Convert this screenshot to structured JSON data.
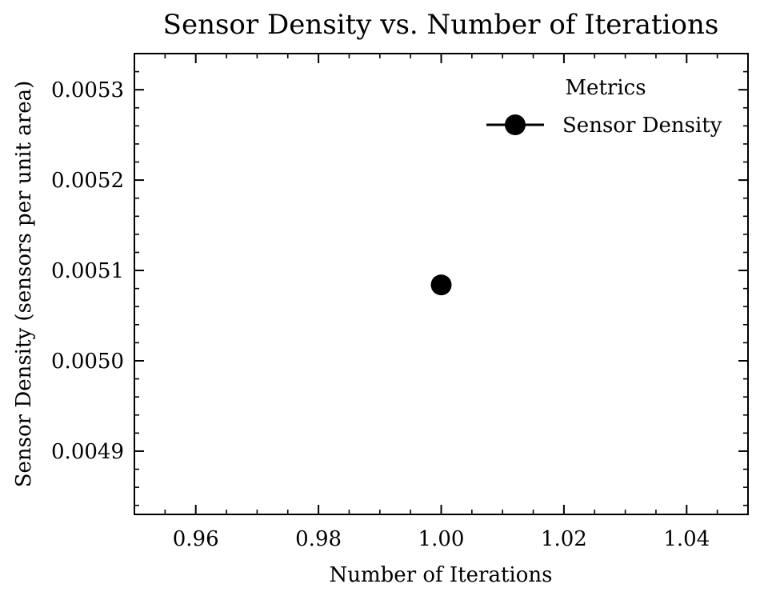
{
  "chart_data": {
    "type": "scatter",
    "title": "Sensor Density vs. Number of Iterations",
    "xlabel": "Number of Iterations",
    "ylabel": "Sensor Density (sensors per unit area)",
    "xlim": [
      0.95,
      1.05
    ],
    "ylim": [
      0.00483,
      0.00534
    ],
    "x_ticks": [
      "0.96",
      "0.98",
      "1.00",
      "1.02",
      "1.04"
    ],
    "y_ticks": [
      "0.0049",
      "0.0050",
      "0.0051",
      "0.0052",
      "0.0053"
    ],
    "grid": false,
    "legend": {
      "title": "Metrics",
      "placement": "top-right"
    },
    "series": [
      {
        "name": "Sensor Density",
        "color": "#000000",
        "marker": "circle",
        "x": [
          1.0
        ],
        "y": [
          0.005084
        ]
      }
    ]
  }
}
